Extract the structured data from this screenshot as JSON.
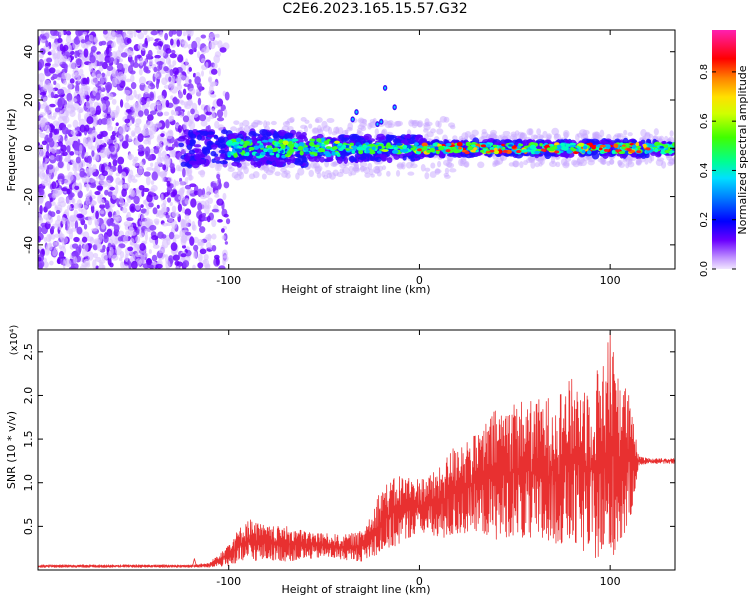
{
  "title": "C2E6.2023.165.15.57.G32",
  "chart_data": [
    {
      "type": "heatmap",
      "xlabel": "Height of straight line (km)",
      "ylabel": "Frequency (Hz)",
      "xlim": [
        -200,
        134
      ],
      "ylim": [
        -50,
        49
      ],
      "xticks": [
        -100,
        0,
        100
      ],
      "yticks": [
        -40,
        -20,
        0,
        20,
        40
      ],
      "colorbar": {
        "label": "Normalized spectral amplitude",
        "range": [
          0,
          0.97
        ],
        "ticks": [
          "0.0",
          "0.2",
          "0.4",
          "0.6",
          "0.8"
        ],
        "tick_values": [
          0,
          0.2,
          0.4,
          0.6,
          0.8
        ],
        "colormap": [
          "#ffffff",
          "#e0c8ff",
          "#6a00ff",
          "#0000ff",
          "#00c0ff",
          "#00ff80",
          "#40ff00",
          "#ffff00",
          "#ff8000",
          "#ff0000",
          "#ff00a0"
        ]
      },
      "features": {
        "noise_region_x": [
          -200,
          -100
        ],
        "signal_band_center_hz": 0,
        "signal_band_halfwidth_hz": 8,
        "strong_peak_x": [
          0,
          120
        ]
      }
    },
    {
      "type": "line",
      "xlabel": "Height of straight line (km)",
      "ylabel": "SNR (10 * v/v)",
      "y_multiplier": "(x10⁴)",
      "xlim": [
        -200,
        134
      ],
      "ylim": [
        0,
        2.75
      ],
      "xticks": [
        -100,
        0,
        100
      ],
      "yticks": [
        0.5,
        1.0,
        1.5,
        2.0,
        2.5
      ],
      "ytick_labels": [
        "0.5",
        "1.0",
        "1.5",
        "2.0",
        "2.5"
      ],
      "color": "#e83030",
      "series": [
        {
          "x": [
            -200,
            -160,
            -120,
            -110,
            -100,
            -90,
            -80,
            -70,
            -60,
            -50,
            -40,
            -30,
            -20,
            -10,
            0,
            10,
            20,
            30,
            40,
            50,
            60,
            70,
            80,
            90,
            100,
            110,
            115,
            120,
            134
          ],
          "y_min": [
            0.03,
            0.03,
            0.03,
            0.03,
            0.05,
            0.1,
            0.12,
            0.1,
            0.12,
            0.15,
            0.12,
            0.1,
            0.2,
            0.3,
            0.45,
            0.35,
            0.4,
            0.45,
            0.35,
            0.4,
            0.3,
            0.3,
            0.3,
            0.15,
            0.1,
            0.5,
            1.2,
            1.22,
            1.22
          ],
          "y_max": [
            0.06,
            0.06,
            0.06,
            0.08,
            0.32,
            0.6,
            0.5,
            0.5,
            0.45,
            0.42,
            0.4,
            0.45,
            0.95,
            1.1,
            1.05,
            1.15,
            1.5,
            1.55,
            1.85,
            1.95,
            1.95,
            2.0,
            2.2,
            2.15,
            2.7,
            2.0,
            1.3,
            1.28,
            1.28
          ]
        }
      ]
    }
  ]
}
